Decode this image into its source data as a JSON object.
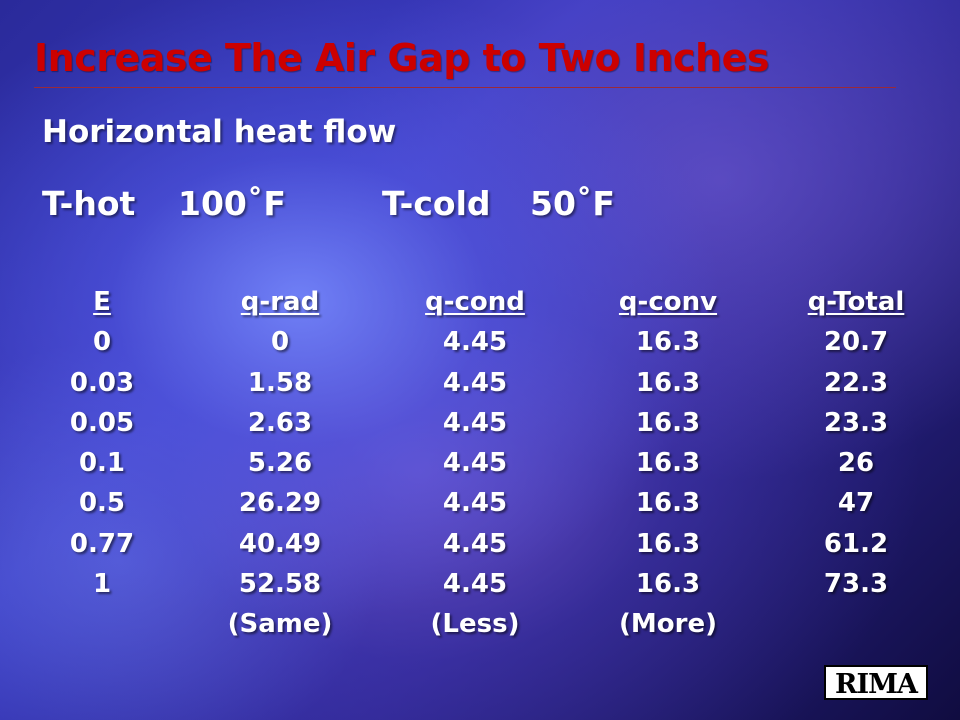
{
  "slide": {
    "title": "Increase The Air Gap to Two Inches",
    "subtitle": "Horizontal heat flow",
    "t_hot_label": "T-hot",
    "t_hot_value": "100˚F",
    "t_cold_label": "T-cold",
    "t_cold_value": "50˚F"
  },
  "table": {
    "headers": [
      "E",
      "q-rad",
      "q-cond",
      "q-conv",
      "q-Total"
    ],
    "rows": [
      [
        "0",
        "0",
        "4.45",
        "16.3",
        "20.7"
      ],
      [
        "0.03",
        "1.58",
        "4.45",
        "16.3",
        "22.3"
      ],
      [
        "0.05",
        "2.63",
        "4.45",
        "16.3",
        "23.3"
      ],
      [
        "0.1",
        "5.26",
        "4.45",
        "16.3",
        "26"
      ],
      [
        "0.5",
        "26.29",
        "4.45",
        "16.3",
        "47"
      ],
      [
        "0.77",
        "40.49",
        "4.45",
        "16.3",
        "61.2"
      ],
      [
        "1",
        "52.58",
        "4.45",
        "16.3",
        "73.3"
      ]
    ],
    "notes": [
      "",
      "(Same)",
      "(Less)",
      "(More)",
      ""
    ]
  },
  "logo": {
    "text": "RIMA"
  }
}
